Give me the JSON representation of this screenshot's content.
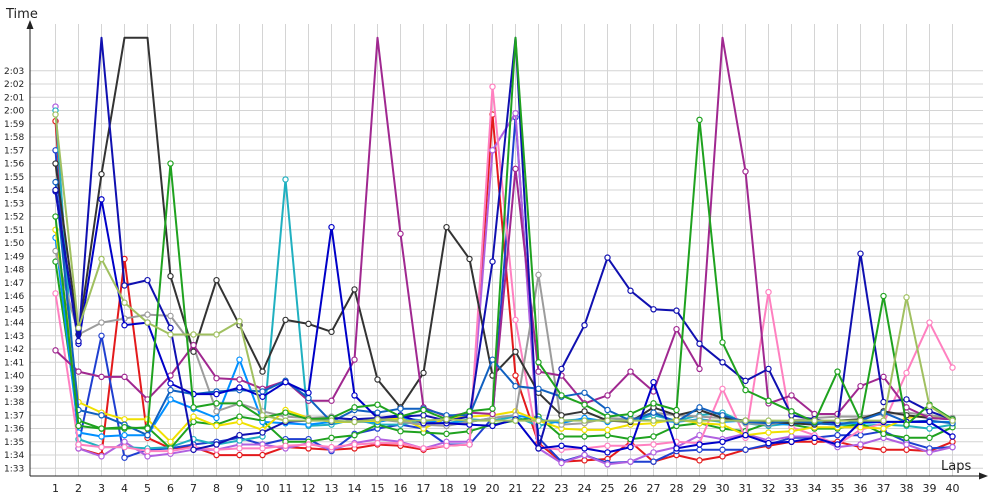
{
  "chart_data": {
    "type": "line",
    "title": "",
    "xlabel": "Laps",
    "ylabel": "Time",
    "grid": true,
    "legend": "none",
    "x": [
      1,
      2,
      3,
      4,
      5,
      6,
      7,
      8,
      9,
      10,
      11,
      12,
      13,
      14,
      15,
      16,
      17,
      18,
      19,
      20,
      21,
      22,
      23,
      24,
      25,
      26,
      27,
      28,
      29,
      30,
      31,
      32,
      33,
      34,
      35,
      36,
      37,
      38,
      39,
      40
    ],
    "x_tick_labels": [
      "1",
      "2",
      "3",
      "4",
      "5",
      "6",
      "7",
      "8",
      "9",
      "10",
      "11",
      "12",
      "13",
      "14",
      "15",
      "16",
      "17",
      "18",
      "19",
      "20",
      "21",
      "22",
      "23",
      "24",
      "25",
      "26",
      "27",
      "28",
      "29",
      "30",
      "31",
      "32",
      "33",
      "34",
      "35",
      "36",
      "37",
      "38",
      "39",
      "40"
    ],
    "y_unit": "seconds",
    "ylim": [
      92.5,
      125
    ],
    "y_ticks": [
      93,
      94,
      95,
      96,
      97,
      98,
      99,
      100,
      101,
      102,
      103,
      104,
      105,
      106,
      107,
      108,
      109,
      110,
      111,
      112,
      113,
      114,
      115,
      116,
      117,
      118,
      119,
      120,
      121,
      122,
      123
    ],
    "y_tick_labels": [
      "1:33",
      "1:34",
      "1:35",
      "1:36",
      "1:37",
      "1:38",
      "1:39",
      "1:40",
      "1:41",
      "1:42",
      "1:43",
      "1:44",
      "1:45",
      "1:46",
      "1:47",
      "1:48",
      "1:49",
      "1:50",
      "1:51",
      "1:52",
      "1:53",
      "1:54",
      "1:55",
      "1:56",
      "1:57",
      "1:58",
      "1:59",
      "2:00",
      "2:01",
      "2:02",
      "2:03"
    ],
    "series": [
      {
        "color": "#e31a1c",
        "values": [
          119.2,
          94.5,
          94.0,
          108.8,
          95.3,
          94.5,
          94.6,
          94.0,
          94.0,
          94.0,
          94.6,
          94.5,
          94.4,
          94.5,
          94.8,
          94.7,
          94.4,
          94.7,
          94.8,
          119.7,
          100.0,
          94.9,
          93.5,
          93.6,
          93.7,
          95.0,
          93.5,
          94.0,
          93.6,
          93.9,
          94.4,
          94.7,
          95.0,
          95.0,
          95.0,
          94.6,
          94.4,
          94.4,
          94.3,
          95.0
        ]
      },
      {
        "color": "#1f3fd0",
        "values": [
          117.0,
          94.8,
          103.0,
          93.8,
          94.4,
          94.5,
          94.8,
          95.0,
          95.3,
          94.8,
          95.2,
          95.2,
          94.3,
          95.6,
          96.0,
          96.3,
          96.0,
          94.8,
          94.8,
          96.8,
          119.5,
          95.3,
          93.5,
          94.0,
          93.4,
          93.5,
          93.5,
          94.3,
          94.4,
          94.4,
          94.4,
          94.8,
          95.3,
          95.3,
          95.5,
          95.5,
          95.8,
          95.0,
          94.5,
          94.6
        ]
      },
      {
        "color": "#b060e0",
        "values": [
          120.3,
          94.5,
          93.9,
          95.0,
          93.9,
          94.1,
          94.4,
          94.4,
          94.8,
          94.8,
          94.5,
          94.9,
          94.4,
          94.9,
          95.2,
          95.0,
          94.5,
          95.0,
          95.0,
          117.0,
          119.8,
          94.5,
          93.4,
          94.0,
          93.3,
          93.5,
          94.2,
          94.6,
          95.5,
          95.2,
          95.6,
          95.1,
          95.4,
          95.4,
          94.6,
          94.8,
          95.3,
          94.8,
          94.2,
          94.6
        ]
      },
      {
        "color": "#20b0c0",
        "values": [
          120.0,
          95.2,
          94.6,
          94.6,
          94.5,
          94.6,
          95.2,
          94.8,
          95.1,
          95.4,
          114.8,
          96.2,
          96.3,
          96.7,
          96.3,
          96.3,
          96.6,
          96.4,
          96.7,
          96.6,
          96.9,
          96.2,
          96.6,
          96.7,
          96.6,
          96.6,
          97.0,
          96.6,
          97.0,
          97.2,
          96.4,
          96.2,
          96.4,
          96.4,
          96.3,
          96.2,
          96.3,
          96.2,
          96.0,
          96.3
        ]
      },
      {
        "color": "#1fa21f",
        "values": [
          108.6,
          96.6,
          96.0,
          96.0,
          96.1,
          94.5,
          96.5,
          96.3,
          96.9,
          96.6,
          95.0,
          95.0,
          95.3,
          95.5,
          96.3,
          95.8,
          95.7,
          95.6,
          95.8,
          96.3,
          96.6,
          96.9,
          95.4,
          95.4,
          95.5,
          95.2,
          95.4,
          96.2,
          96.4,
          96.0,
          95.8,
          96.4,
          96.3,
          96.0,
          96.0,
          96.4,
          95.6,
          95.3,
          95.3,
          96.1
        ]
      },
      {
        "color": "#0090ff",
        "values": [
          110.4,
          95.7,
          95.4,
          95.5,
          95.5,
          98.2,
          97.5,
          96.8,
          101.2,
          96.5,
          96.4,
          96.3,
          96.5,
          96.5,
          96.5,
          96.8,
          96.6,
          96.4,
          96.5,
          96.8,
          97.0,
          96.7,
          96.4,
          96.8,
          96.5,
          96.8,
          96.6,
          96.5,
          96.7,
          96.5,
          96.6,
          96.4,
          96.3,
          96.5,
          96.4,
          96.4,
          96.5,
          96.5,
          96.5,
          96.5
        ]
      },
      {
        "color": "#ff80c0",
        "values": [
          106.2,
          94.8,
          94.6,
          94.6,
          94.3,
          94.3,
          94.6,
          94.4,
          94.5,
          94.5,
          94.7,
          94.8,
          94.6,
          94.8,
          94.9,
          94.9,
          94.5,
          94.7,
          94.8,
          121.8,
          104.2,
          94.6,
          94.4,
          94.5,
          94.7,
          94.7,
          94.8,
          95.0,
          94.9,
          99.0,
          95.3,
          106.3,
          96.1,
          95.5,
          94.8,
          95.9,
          96.4,
          100.2,
          104.0,
          100.6
        ]
      },
      {
        "color": "#f0e000",
        "values": [
          111.0,
          98.0,
          97.2,
          96.7,
          96.7,
          95.0,
          96.9,
          96.2,
          96.5,
          95.9,
          97.4,
          96.8,
          96.5,
          96.5,
          96.6,
          96.8,
          96.0,
          96.8,
          96.9,
          97.0,
          97.3,
          96.6,
          96.0,
          95.9,
          95.9,
          96.3,
          96.4,
          96.7,
          96.4,
          96.3,
          95.5,
          95.7,
          95.8,
          96.1,
          96.1,
          96.1,
          96.0,
          96.8,
          97.0,
          96.7
        ]
      },
      {
        "color": "#9c9c9c",
        "values": [
          109.4,
          103.1,
          104.0,
          104.3,
          104.6,
          104.5,
          102.2,
          97.3,
          97.9,
          97.3,
          96.9,
          96.8,
          96.9,
          96.6,
          96.7,
          96.5,
          96.3,
          96.2,
          96.5,
          96.8,
          97.0,
          107.6,
          96.3,
          96.4,
          96.8,
          96.7,
          97.2,
          97.0,
          96.9,
          96.8,
          96.4,
          96.3,
          96.6,
          96.8,
          96.9,
          96.9,
          97.1,
          97.2,
          97.0,
          96.8
        ]
      },
      {
        "color": "#333333",
        "values": [
          116.0,
          103.1,
          115.2,
          125.5,
          125.5,
          107.5,
          101.8,
          107.2,
          103.8,
          100.3,
          104.2,
          103.9,
          103.3,
          106.5,
          99.7,
          97.6,
          100.2,
          111.2,
          108.8,
          100.0,
          101.8,
          98.7,
          97.0,
          97.3,
          96.6,
          96.5,
          97.6,
          97.0,
          97.4,
          96.8,
          96.6,
          96.5,
          96.4,
          96.3,
          96.6,
          96.7,
          97.3,
          97.0,
          96.8,
          96.7
        ]
      },
      {
        "color": "#a02890",
        "values": [
          101.9,
          100.3,
          99.9,
          99.9,
          98.2,
          100.0,
          102.3,
          99.8,
          99.7,
          99.0,
          99.6,
          98.1,
          98.1,
          101.2,
          125.5,
          110.7,
          97.6,
          96.9,
          97.2,
          97.1,
          115.6,
          100.3,
          100.0,
          97.9,
          98.5,
          100.3,
          98.8,
          103.5,
          100.5,
          125.5,
          115.4,
          97.9,
          98.5,
          97.1,
          97.1,
          99.2,
          99.9,
          97.6,
          96.8,
          96.7
        ]
      },
      {
        "color": "#1060c0",
        "values": [
          114.6,
          97.4,
          97.0,
          96.3,
          95.5,
          98.9,
          98.6,
          98.8,
          98.9,
          98.8,
          99.6,
          98.3,
          96.5,
          97.4,
          97.2,
          97.5,
          97.5,
          97.0,
          97.0,
          101.2,
          99.2,
          99.0,
          98.4,
          98.7,
          97.4,
          96.6,
          97.2,
          96.5,
          97.6,
          97.0,
          96.5,
          96.4,
          96.6,
          96.4,
          96.3,
          96.6,
          97.2,
          96.5,
          96.6,
          96.4
        ]
      },
      {
        "color": "#0000c8",
        "values": [
          113.9,
          102.4,
          113.3,
          103.8,
          104.0,
          99.4,
          98.6,
          98.6,
          99.1,
          98.4,
          99.5,
          98.7,
          111.2,
          98.5,
          96.8,
          97.0,
          96.4,
          96.4,
          96.3,
          96.2,
          96.7,
          94.5,
          94.7,
          94.5,
          94.2,
          94.6,
          99.5,
          94.5,
          94.8,
          95.0,
          95.5,
          94.9,
          95.0,
          95.3,
          94.8,
          96.5,
          96.5,
          96.5,
          96.5,
          95.4
        ]
      },
      {
        "color": "#1010b0",
        "values": [
          114.0,
          102.6,
          125.5,
          106.8,
          107.2,
          103.6,
          94.4,
          94.8,
          95.5,
          95.7,
          96.5,
          96.6,
          96.8,
          96.7,
          96.8,
          96.9,
          97.0,
          96.6,
          96.9,
          108.6,
          125.5,
          94.5,
          100.5,
          103.8,
          108.9,
          106.4,
          105.0,
          104.9,
          102.4,
          101.0,
          99.6,
          100.5,
          97.0,
          96.7,
          96.4,
          109.2,
          98.0,
          98.2,
          97.3,
          96.7
        ]
      },
      {
        "color": "#1fa21f",
        "values": [
          112.0,
          96.2,
          96.0,
          96.1,
          96.0,
          116.0,
          97.6,
          97.9,
          97.9,
          96.8,
          97.2,
          96.7,
          96.8,
          97.6,
          97.8,
          96.9,
          97.4,
          96.7,
          97.3,
          97.5,
          125.5,
          101.0,
          98.5,
          97.8,
          96.9,
          97.1,
          97.9,
          97.4,
          119.3,
          102.5,
          98.9,
          98.1,
          97.3,
          96.5,
          100.3,
          96.6,
          106.0,
          96.3,
          97.8,
          96.7
        ]
      },
      {
        "color": "#a0c060",
        "values": [
          119.7,
          103.6,
          108.8,
          105.5,
          104.0,
          103.1,
          103.1,
          103.1,
          104.1,
          97.0,
          96.6,
          96.6,
          96.6,
          96.5,
          96.7,
          96.6,
          96.6,
          96.7,
          96.6,
          96.6,
          96.6,
          96.6,
          96.6,
          96.6,
          96.6,
          96.6,
          96.6,
          96.6,
          96.6,
          96.6,
          96.6,
          96.6,
          96.6,
          96.6,
          96.6,
          96.6,
          96.6,
          105.9,
          97.7,
          96.6
        ]
      }
    ]
  }
}
